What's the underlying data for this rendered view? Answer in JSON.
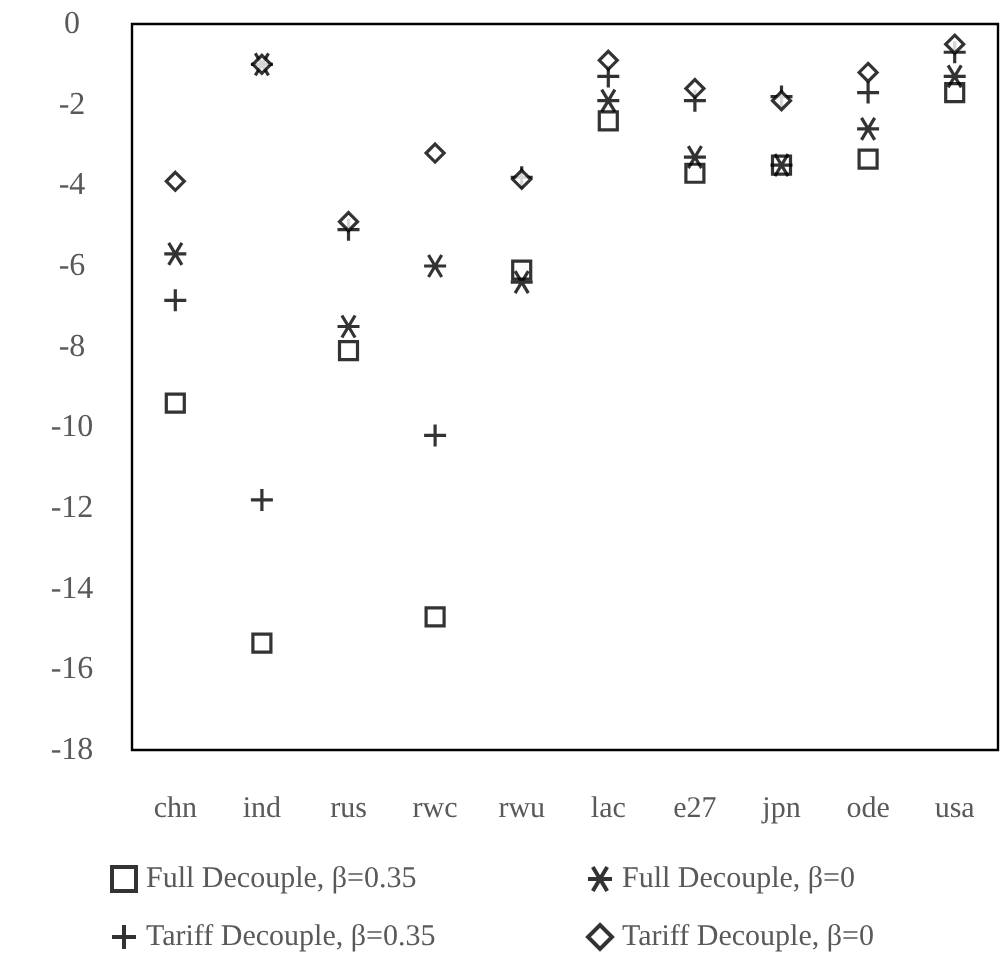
{
  "chart_data": {
    "type": "scatter",
    "categories": [
      "chn",
      "ind",
      "rus",
      "rwc",
      "rwu",
      "lac",
      "e27",
      "jpn",
      "ode",
      "usa"
    ],
    "ylim": [
      -18,
      0
    ],
    "yticks": [
      0,
      -2,
      -4,
      -6,
      -8,
      -10,
      -12,
      -14,
      -16,
      -18
    ],
    "grid": false,
    "legend": "bottom",
    "series": [
      {
        "name": "Full Decouple, β=0.35",
        "color": "#000000",
        "marker": "square",
        "values": [
          -9.4,
          -15.35,
          -8.1,
          -14.7,
          -6.1,
          -2.4,
          -3.7,
          -3.5,
          -3.35,
          -1.7
        ]
      },
      {
        "name": "Full Decouple, β=0",
        "color": "#000000",
        "marker": "cross",
        "values": [
          -5.7,
          -1.0,
          -7.5,
          -6.0,
          -6.4,
          -1.9,
          -3.3,
          -3.5,
          -2.6,
          -1.3
        ]
      },
      {
        "name": "Tariff Decouple, β=0.35",
        "color": "#000000",
        "marker": "cross",
        "values": [
          -6.85,
          -11.8,
          -5.1,
          -10.2,
          -3.8,
          -1.3,
          -1.9,
          -1.8,
          -1.7,
          -0.7
        ]
      },
      {
        "name": "Tariff Decouple, β=0",
        "color": "#000000",
        "marker": "diamond",
        "values": [
          -3.9,
          -1.0,
          -4.9,
          -3.2,
          -3.85,
          -0.9,
          -1.6,
          -1.9,
          -1.2,
          -0.5
        ]
      }
    ]
  }
}
